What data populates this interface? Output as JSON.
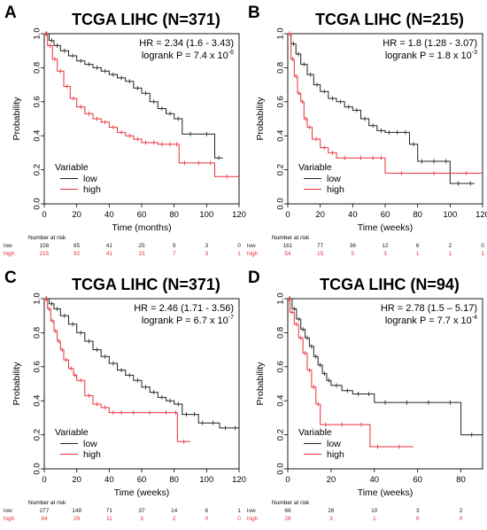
{
  "legend_title": "Variable",
  "risk_header": "Number at risk",
  "colors": {
    "low": "#222222",
    "high": "#e8303a",
    "frame": "#000000"
  },
  "panels": [
    {
      "label": "A",
      "title": "TCGA LIHC (N=371)",
      "hr": "HR = 2.34 (1.6 - 3.43)",
      "logrank_base": "logrank P = 7.4 x 10",
      "logrank_exp": "-6",
      "xlabel": "Time (months)",
      "ylabel": "Probability",
      "xticks": [
        "0",
        "20",
        "40",
        "60",
        "80",
        "100",
        "120"
      ],
      "yticks": [
        "0.0",
        "0.2",
        "0.4",
        "0.6",
        "0.8",
        "1.0"
      ],
      "legend": [
        "low",
        "high"
      ],
      "risk": {
        "low_label": "low",
        "high_label": "high",
        "low": [
          "156",
          "85",
          "41",
          "25",
          "9",
          "3",
          "0"
        ],
        "high": [
          "215",
          "92",
          "41",
          "15",
          "7",
          "3",
          "1"
        ]
      }
    },
    {
      "label": "B",
      "title": "TCGA LIHC (N=215)",
      "hr": "HR = 1.8 (1.28 - 3.07)",
      "logrank_base": "logrank P = 1.8 x 10",
      "logrank_exp": "-3",
      "xlabel": "Time (weeks)",
      "ylabel": "Probability",
      "xticks": [
        "0",
        "20",
        "40",
        "60",
        "80",
        "100",
        "120"
      ],
      "yticks": [
        "0.0",
        "0.2",
        "0.4",
        "0.6",
        "0.8",
        "1.0"
      ],
      "legend": [
        "low",
        "high"
      ],
      "risk": {
        "low_label": "low",
        "high_label": "high",
        "low": [
          "161",
          "77",
          "36",
          "12",
          "6",
          "2",
          "0"
        ],
        "high": [
          "54",
          "15",
          "5",
          "3",
          "1",
          "1",
          "1"
        ]
      }
    },
    {
      "label": "C",
      "title": "TCGA LIHC (N=371)",
      "hr": "HR = 2.46 (1.71 - 3.56)",
      "logrank_base": "logrank P = 6.7 x 10",
      "logrank_exp": "-7",
      "xlabel": "Time (weeks)",
      "ylabel": "Probability",
      "xticks": [
        "0",
        "20",
        "40",
        "60",
        "80",
        "100",
        "120"
      ],
      "yticks": [
        "0.0",
        "0.2",
        "0.4",
        "0.6",
        "0.8",
        "1.0"
      ],
      "legend": [
        "low",
        "high"
      ],
      "risk": {
        "low_label": "low",
        "high_label": "high",
        "low": [
          "277",
          "148",
          "71",
          "37",
          "14",
          "6",
          "1"
        ],
        "high": [
          "94",
          "29",
          "11",
          "3",
          "2",
          "0",
          "0"
        ]
      }
    },
    {
      "label": "D",
      "title": "TCGA LIHC (N=94)",
      "hr": "HR = 2.78 (1.5 – 5.17)",
      "logrank_base": "logrank P = 7.7 x 10",
      "logrank_exp": "-4",
      "xlabel": "Time (weeks)",
      "ylabel": "Probability",
      "xticks": [
        "0",
        "20",
        "40",
        "60",
        "80"
      ],
      "yticks": [
        "0.0",
        "0.2",
        "0.4",
        "0.6",
        "0.8",
        "1.0"
      ],
      "legend": [
        "low",
        "high"
      ],
      "risk": {
        "low_label": "low",
        "high_label": "high",
        "low": [
          "66",
          "26",
          "10",
          "3",
          "2"
        ],
        "high": [
          "28",
          "3",
          "1",
          "0",
          "0"
        ]
      }
    }
  ],
  "chart_data": [
    {
      "type": "line",
      "title": "TCGA LIHC (N=371)",
      "xlabel": "Time (months)",
      "ylabel": "Probability",
      "xlim": [
        0,
        120
      ],
      "ylim": [
        0,
        1
      ],
      "legend": "bottom-left",
      "grid": false,
      "series": [
        {
          "name": "low",
          "color": "#222222",
          "x": [
            0,
            3,
            6,
            10,
            15,
            20,
            25,
            30,
            35,
            40,
            45,
            50,
            55,
            60,
            65,
            70,
            75,
            80,
            85,
            95,
            105,
            110
          ],
          "y": [
            1.0,
            0.96,
            0.93,
            0.9,
            0.87,
            0.84,
            0.82,
            0.8,
            0.78,
            0.76,
            0.74,
            0.72,
            0.68,
            0.65,
            0.6,
            0.56,
            0.53,
            0.5,
            0.41,
            0.41,
            0.27,
            0.27
          ]
        },
        {
          "name": "high",
          "color": "#e8303a",
          "x": [
            0,
            2,
            5,
            8,
            12,
            16,
            20,
            25,
            30,
            35,
            40,
            45,
            50,
            55,
            60,
            65,
            70,
            75,
            80,
            83,
            90,
            100,
            105,
            120
          ],
          "y": [
            1.0,
            0.93,
            0.85,
            0.78,
            0.69,
            0.62,
            0.57,
            0.53,
            0.5,
            0.48,
            0.45,
            0.42,
            0.4,
            0.38,
            0.36,
            0.36,
            0.35,
            0.35,
            0.35,
            0.24,
            0.24,
            0.24,
            0.16,
            0.16
          ]
        }
      ]
    },
    {
      "type": "line",
      "title": "TCGA LIHC (N=215)",
      "xlabel": "Time (weeks)",
      "ylabel": "Probability",
      "xlim": [
        0,
        120
      ],
      "ylim": [
        0,
        1
      ],
      "legend": "bottom-left",
      "grid": false,
      "series": [
        {
          "name": "low",
          "color": "#222222",
          "x": [
            0,
            2,
            5,
            8,
            12,
            16,
            20,
            25,
            30,
            35,
            40,
            45,
            50,
            55,
            60,
            65,
            70,
            75,
            80,
            85,
            95,
            100,
            110,
            115
          ],
          "y": [
            1.0,
            0.94,
            0.88,
            0.82,
            0.76,
            0.7,
            0.66,
            0.62,
            0.6,
            0.57,
            0.55,
            0.5,
            0.46,
            0.43,
            0.42,
            0.42,
            0.42,
            0.35,
            0.25,
            0.25,
            0.25,
            0.12,
            0.12,
            0.12
          ]
        },
        {
          "name": "high",
          "color": "#e8303a",
          "x": [
            0,
            2,
            4,
            6,
            8,
            10,
            12,
            15,
            20,
            25,
            30,
            40,
            50,
            55,
            60,
            80,
            100,
            120
          ],
          "y": [
            1.0,
            0.85,
            0.75,
            0.65,
            0.6,
            0.5,
            0.45,
            0.38,
            0.33,
            0.3,
            0.27,
            0.27,
            0.27,
            0.27,
            0.18,
            0.18,
            0.18,
            0.18
          ]
        }
      ]
    },
    {
      "type": "line",
      "title": "TCGA LIHC (N=371)",
      "xlabel": "Time (weeks)",
      "ylabel": "Probability",
      "xlim": [
        0,
        120
      ],
      "ylim": [
        0,
        1
      ],
      "legend": "bottom-left",
      "grid": false,
      "series": [
        {
          "name": "low",
          "color": "#222222",
          "x": [
            0,
            3,
            6,
            10,
            15,
            20,
            25,
            30,
            35,
            40,
            45,
            50,
            55,
            60,
            65,
            70,
            75,
            80,
            85,
            90,
            95,
            100,
            108,
            115,
            120
          ],
          "y": [
            1.0,
            0.97,
            0.94,
            0.9,
            0.85,
            0.8,
            0.75,
            0.7,
            0.66,
            0.62,
            0.58,
            0.55,
            0.52,
            0.48,
            0.45,
            0.42,
            0.4,
            0.38,
            0.32,
            0.32,
            0.27,
            0.27,
            0.24,
            0.24,
            0.24
          ]
        },
        {
          "name": "high",
          "color": "#e8303a",
          "x": [
            0,
            2,
            4,
            6,
            8,
            10,
            12,
            15,
            18,
            20,
            25,
            30,
            35,
            40,
            45,
            50,
            60,
            70,
            80,
            82,
            90
          ],
          "y": [
            1.0,
            0.94,
            0.87,
            0.81,
            0.75,
            0.7,
            0.64,
            0.59,
            0.55,
            0.52,
            0.43,
            0.38,
            0.36,
            0.33,
            0.33,
            0.33,
            0.33,
            0.33,
            0.33,
            0.16,
            0.16
          ]
        }
      ]
    },
    {
      "type": "line",
      "title": "TCGA LIHC (N=94)",
      "xlabel": "Time (weeks)",
      "ylabel": "Probability",
      "xlim": [
        0,
        90
      ],
      "ylim": [
        0,
        1
      ],
      "legend": "bottom-left",
      "grid": false,
      "series": [
        {
          "name": "low",
          "color": "#222222",
          "x": [
            0,
            2,
            4,
            6,
            8,
            10,
            12,
            14,
            16,
            18,
            20,
            25,
            30,
            35,
            40,
            50,
            60,
            70,
            80,
            90
          ],
          "y": [
            1.0,
            0.94,
            0.88,
            0.82,
            0.77,
            0.72,
            0.66,
            0.61,
            0.56,
            0.52,
            0.49,
            0.46,
            0.44,
            0.44,
            0.39,
            0.39,
            0.39,
            0.39,
            0.2,
            0.2
          ]
        },
        {
          "name": "high",
          "color": "#e8303a",
          "x": [
            0,
            1,
            3,
            5,
            7,
            9,
            11,
            13,
            15,
            20,
            30,
            38,
            45,
            58
          ],
          "y": [
            1.0,
            0.92,
            0.85,
            0.77,
            0.68,
            0.58,
            0.48,
            0.38,
            0.26,
            0.26,
            0.26,
            0.13,
            0.13,
            0.13
          ]
        }
      ]
    }
  ]
}
